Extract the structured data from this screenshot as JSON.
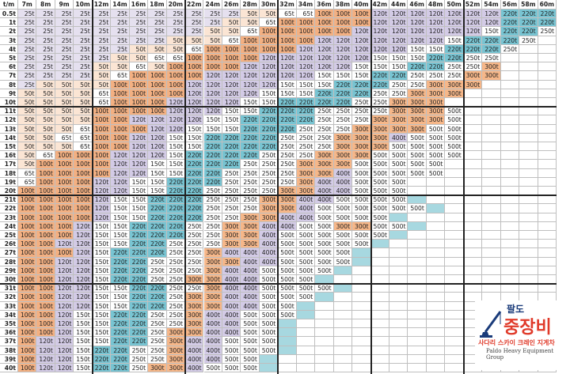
{
  "title": "",
  "lengths": [
    "7m",
    "8m",
    "9m",
    "10m",
    "12m",
    "14m",
    "16m",
    "18m",
    "20m",
    "22m",
    "24m",
    "26m",
    "28m",
    "30m",
    "32m",
    "34m",
    "36m",
    "38m",
    "40m",
    "42m",
    "44m",
    "46m",
    "48m",
    "50m",
    "52m",
    "54m",
    "56m",
    "58m",
    "60m"
  ],
  "corner_label": "t/m",
  "row_labels": [
    "0.5t",
    "1t",
    "2t",
    "3t",
    "4t",
    "5t",
    "6t",
    "7t",
    "8t",
    "9t",
    "10t",
    "11t",
    "12t",
    "13t",
    "14t",
    "15t",
    "16t",
    "17t",
    "18t",
    "19t",
    "20t",
    "21t",
    "22t",
    "23t",
    "24t",
    "25t",
    "26t",
    "27t",
    "28t",
    "29t",
    "30t",
    "31t",
    "32t",
    "33t",
    "34t",
    "35t",
    "36t",
    "37t",
    "38t",
    "39t",
    "40t"
  ],
  "rows": [
    [
      "25t",
      "25t",
      "25t",
      "25t",
      "25t",
      "25t",
      "25t",
      "25t",
      "25t",
      "25t",
      "25t",
      "25t",
      "50t",
      "50t",
      "65t",
      "65t",
      "100t",
      "100t",
      "100t",
      "120t",
      "120t",
      "120t",
      "120t",
      "120t",
      "120t",
      "120t",
      "220t",
      "220t",
      "220t"
    ],
    [
      "25t",
      "25t",
      "25t",
      "25t",
      "25t",
      "25t",
      "25t",
      "25t",
      "25t",
      "25t",
      "25t",
      "50t",
      "50t",
      "65t",
      "100t",
      "100t",
      "100t",
      "100t",
      "100t",
      "120t",
      "120t",
      "120t",
      "120t",
      "120t",
      "120t",
      "120t",
      "220t",
      "220t",
      "220t"
    ],
    [
      "25t",
      "25t",
      "25t",
      "25t",
      "25t",
      "25t",
      "25t",
      "25t",
      "25t",
      "25t",
      "50t",
      "50t",
      "65t",
      "100t",
      "100t",
      "100t",
      "100t",
      "100t",
      "120t",
      "120t",
      "120t",
      "120t",
      "120t",
      "120t",
      "120t",
      "150t",
      "220t",
      "220t",
      "250t"
    ],
    [
      "25t",
      "25t",
      "25t",
      "25t",
      "25t",
      "25t",
      "25t",
      "25t",
      "50t",
      "50t",
      "50t",
      "65t",
      "100t",
      "100t",
      "100t",
      "100t",
      "120t",
      "120t",
      "120t",
      "120t",
      "120t",
      "120t",
      "120t",
      "150t",
      "220t",
      "220t",
      "220t",
      "250t",
      ""
    ],
    [
      "25t",
      "25t",
      "25t",
      "25t",
      "25t",
      "25t",
      "50t",
      "50t",
      "50t",
      "65t",
      "100t",
      "100t",
      "100t",
      "100t",
      "100t",
      "120t",
      "120t",
      "120t",
      "120t",
      "120t",
      "120t",
      "150t",
      "150t",
      "220t",
      "220t",
      "220t",
      "250t",
      "",
      ""
    ],
    [
      "25t",
      "25t",
      "25t",
      "25t",
      "25t",
      "50t",
      "50t",
      "65t",
      "65t",
      "100t",
      "100t",
      "100t",
      "100t",
      "120t",
      "120t",
      "120t",
      "120t",
      "120t",
      "120t",
      "150t",
      "150t",
      "150t",
      "220t",
      "220t",
      "250t",
      "250t",
      "",
      "",
      ""
    ],
    [
      "25t",
      "25t",
      "25t",
      "25t",
      "50t",
      "50t",
      "65t",
      "50t",
      "100t",
      "100t",
      "100t",
      "100t",
      "120t",
      "120t",
      "120t",
      "120t",
      "120t",
      "120t",
      "150t",
      "150t",
      "150t",
      "220t",
      "220t",
      "250t",
      "250t",
      "300t",
      "",
      "",
      ""
    ],
    [
      "25t",
      "25t",
      "25t",
      "25t",
      "50t",
      "65t",
      "100t",
      "100t",
      "100t",
      "100t",
      "120t",
      "120t",
      "120t",
      "120t",
      "120t",
      "120t",
      "150t",
      "150t",
      "150t",
      "220t",
      "220t",
      "250t",
      "250t",
      "250t",
      "300t",
      "300t",
      "",
      "",
      ""
    ],
    [
      "25t",
      "50t",
      "50t",
      "50t",
      "50t",
      "100t",
      "100t",
      "100t",
      "100t",
      "120t",
      "120t",
      "120t",
      "120t",
      "120t",
      "150t",
      "150t",
      "150t",
      "220t",
      "220t",
      "220t",
      "250t",
      "250t",
      "300t",
      "300t",
      "300t",
      "",
      "",
      "",
      ""
    ],
    [
      "50t",
      "50t",
      "50t",
      "50t",
      "65t",
      "100t",
      "100t",
      "100t",
      "100t",
      "120t",
      "120t",
      "120t",
      "120t",
      "150t",
      "150t",
      "150t",
      "220t",
      "220t",
      "220t",
      "250t",
      "250t",
      "300t",
      "300t",
      "300t",
      "",
      "",
      "",
      "",
      ""
    ],
    [
      "50t",
      "50t",
      "50t",
      "50t",
      "65t",
      "100t",
      "100t",
      "100t",
      "120t",
      "120t",
      "120t",
      "120t",
      "150t",
      "150t",
      "220t",
      "220t",
      "220t",
      "220t",
      "250t",
      "250t",
      "300t",
      "300t",
      "300t",
      "",
      "",
      "",
      "",
      "",
      ""
    ],
    [
      "50t",
      "50t",
      "50t",
      "50t",
      "100t",
      "100t",
      "100t",
      "100t",
      "120t",
      "120t",
      "120t",
      "150t",
      "150t",
      "220t",
      "220t",
      "220t",
      "250t",
      "250t",
      "250t",
      "250t",
      "300t",
      "300t",
      "300t",
      "500t",
      "",
      "",
      "",
      "",
      ""
    ],
    [
      "50t",
      "50t",
      "50t",
      "50t",
      "100t",
      "100t",
      "120t",
      "120t",
      "120t",
      "120t",
      "150t",
      "150t",
      "220t",
      "220t",
      "220t",
      "220t",
      "250t",
      "250t",
      "250t",
      "300t",
      "300t",
      "300t",
      "300t",
      "500t",
      "",
      "",
      "",
      "",
      ""
    ],
    [
      "50t",
      "50t",
      "50t",
      "65t",
      "100t",
      "100t",
      "100t",
      "120t",
      "120t",
      "150t",
      "150t",
      "150t",
      "220t",
      "220t",
      "220t",
      "250t",
      "250t",
      "250t",
      "300t",
      "300t",
      "300t",
      "300t",
      "500t",
      "500t",
      "",
      "",
      "",
      "",
      ""
    ],
    [
      "50t",
      "50t",
      "65t",
      "65t",
      "100t",
      "100t",
      "120t",
      "120t",
      "150t",
      "150t",
      "220t",
      "220t",
      "220t",
      "220t",
      "250t",
      "250t",
      "250t",
      "300t",
      "300t",
      "300t",
      "400t",
      "500t",
      "500t",
      "500t",
      "",
      "",
      "",
      "",
      ""
    ],
    [
      "50t",
      "50t",
      "50t",
      "65t",
      "100t",
      "100t",
      "120t",
      "120t",
      "150t",
      "150t",
      "220t",
      "220t",
      "220t",
      "220t",
      "250t",
      "250t",
      "250t",
      "300t",
      "300t",
      "300t",
      "500t",
      "500t",
      "500t",
      "500t",
      "",
      "",
      "",
      "",
      ""
    ],
    [
      "50t",
      "65t",
      "100t",
      "100t",
      "100t",
      "120t",
      "120t",
      "120t",
      "150t",
      "220t",
      "220t",
      "220t",
      "220t",
      "250t",
      "250t",
      "250t",
      "300t",
      "300t",
      "300t",
      "500t",
      "500t",
      "500t",
      "500t",
      "500t",
      "",
      "",
      "",
      "",
      ""
    ],
    [
      "50t",
      "100t",
      "100t",
      "100t",
      "100t",
      "120t",
      "120t",
      "150t",
      "150t",
      "220t",
      "220t",
      "220t",
      "250t",
      "250t",
      "250t",
      "300t",
      "300t",
      "300t",
      "500t",
      "500t",
      "500t",
      "500t",
      "500t",
      "",
      "",
      "",
      "",
      "",
      ""
    ],
    [
      "65t",
      "100t",
      "100t",
      "100t",
      "100t",
      "120t",
      "120t",
      "150t",
      "150t",
      "220t",
      "220t",
      "250t",
      "250t",
      "250t",
      "250t",
      "300t",
      "300t",
      "400t",
      "500t",
      "500t",
      "500t",
      "500t",
      "500t",
      "",
      "",
      "",
      "",
      "",
      ""
    ],
    [
      "65t",
      "100t",
      "100t",
      "100t",
      "120t",
      "120t",
      "150t",
      "150t",
      "220t",
      "220t",
      "220t",
      "250t",
      "250t",
      "250t",
      "250t",
      "300t",
      "400t",
      "400t",
      "500t",
      "500t",
      "500t",
      "",
      "",
      "",
      "",
      "",
      "",
      "",
      ""
    ],
    [
      "100t",
      "100t",
      "100t",
      "100t",
      "120t",
      "120t",
      "150t",
      "150t",
      "220t",
      "220t",
      "250t",
      "250t",
      "250t",
      "250t",
      "300t",
      "300t",
      "400t",
      "400t",
      "500t",
      "500t",
      "500t",
      "",
      "",
      "",
      "",
      "",
      "",
      "",
      ""
    ],
    [
      "100t",
      "100t",
      "100t",
      "100t",
      "120t",
      "150t",
      "150t",
      "220t",
      "220t",
      "220t",
      "250t",
      "250t",
      "250t",
      "300t",
      "300t",
      "400t",
      "400t",
      "500t",
      "500t",
      "500t",
      "500t",
      "",
      "",
      "",
      "",
      "",
      "",
      "",
      ""
    ],
    [
      "100t",
      "100t",
      "100t",
      "100t",
      "120t",
      "150t",
      "150t",
      "220t",
      "220t",
      "220t",
      "250t",
      "250t",
      "250t",
      "300t",
      "300t",
      "400t",
      "500t",
      "500t",
      "500t",
      "500t",
      "500t",
      "500t",
      "",
      "",
      "",
      "",
      "",
      "",
      ""
    ],
    [
      "100t",
      "100t",
      "100t",
      "100t",
      "120t",
      "150t",
      "150t",
      "220t",
      "220t",
      "220t",
      "250t",
      "250t",
      "300t",
      "300t",
      "400t",
      "400t",
      "500t",
      "500t",
      "500t",
      "500t",
      "",
      "",
      "",
      "",
      "",
      "",
      "",
      "",
      ""
    ],
    [
      "100t",
      "100t",
      "100t",
      "120t",
      "150t",
      "150t",
      "220t",
      "220t",
      "220t",
      "250t",
      "250t",
      "300t",
      "300t",
      "400t",
      "400t",
      "500t",
      "500t",
      "300t",
      "300t",
      "500t",
      "500t",
      "",
      "",
      "",
      "",
      "",
      "",
      "",
      ""
    ],
    [
      "100t",
      "100t",
      "100t",
      "120t",
      "150t",
      "150t",
      "220t",
      "220t",
      "220t",
      "250t",
      "250t",
      "300t",
      "300t",
      "400t",
      "500t",
      "500t",
      "500t",
      "500t",
      "500t",
      "500t",
      "",
      "",
      "",
      "",
      "",
      "",
      "",
      "",
      ""
    ],
    [
      "100t",
      "100t",
      "120t",
      "120t",
      "150t",
      "150t",
      "220t",
      "220t",
      "250t",
      "250t",
      "250t",
      "300t",
      "300t",
      "400t",
      "500t",
      "500t",
      "500t",
      "500t",
      "500t",
      "",
      "",
      "",
      "",
      "",
      "",
      "",
      "",
      "",
      ""
    ],
    [
      "100t",
      "100t",
      "100t",
      "120t",
      "150t",
      "220t",
      "220t",
      "220t",
      "250t",
      "250t",
      "300t",
      "400t",
      "400t",
      "400t",
      "500t",
      "500t",
      "500t",
      "500t",
      "",
      "",
      "",
      "",
      "",
      "",
      "",
      "",
      "",
      "",
      ""
    ],
    [
      "100t",
      "100t",
      "120t",
      "120t",
      "150t",
      "220t",
      "220t",
      "250t",
      "250t",
      "250t",
      "300t",
      "300t",
      "400t",
      "400t",
      "500t",
      "500t",
      "500t",
      "500t",
      "",
      "",
      "",
      "",
      "",
      "",
      "",
      "",
      "",
      "",
      ""
    ],
    [
      "100t",
      "100t",
      "120t",
      "120t",
      "150t",
      "220t",
      "220t",
      "250t",
      "250t",
      "250t",
      "300t",
      "400t",
      "400t",
      "500t",
      "500t",
      "500t",
      "500t",
      "",
      "",
      "",
      "",
      "",
      "",
      "",
      "",
      "",
      "",
      "",
      ""
    ],
    [
      "100t",
      "100t",
      "120t",
      "120t",
      "150t",
      "220t",
      "220t",
      "250t",
      "250t",
      "300t",
      "300t",
      "400t",
      "400t",
      "500t",
      "500t",
      "500t",
      "",
      "",
      "",
      "",
      "",
      "",
      "",
      "",
      "",
      "",
      "",
      "",
      ""
    ],
    [
      "100t",
      "100t",
      "120t",
      "120t",
      "150t",
      "150t",
      "220t",
      "220t",
      "250t",
      "250t",
      "300t",
      "400t",
      "400t",
      "500t",
      "500t",
      "500t",
      "500t",
      "",
      "",
      "",
      "",
      "",
      "",
      "",
      "",
      "",
      "",
      "",
      ""
    ],
    [
      "100t",
      "100t",
      "120t",
      "120t",
      "150t",
      "150t",
      "220t",
      "220t",
      "250t",
      "300t",
      "300t",
      "400t",
      "400t",
      "500t",
      "500t",
      "500t",
      "",
      "",
      "",
      "",
      "",
      "",
      "",
      "",
      "",
      "",
      "",
      "",
      ""
    ],
    [
      "100t",
      "100t",
      "120t",
      "120t",
      "150t",
      "150t",
      "220t",
      "220t",
      "250t",
      "300t",
      "300t",
      "400t",
      "400t",
      "500t",
      "500t",
      "",
      "",
      "",
      "",
      "",
      "",
      "",
      "",
      "",
      "",
      "",
      "",
      "",
      ""
    ],
    [
      "100t",
      "100t",
      "120t",
      "150t",
      "150t",
      "220t",
      "220t",
      "250t",
      "250t",
      "300t",
      "400t",
      "400t",
      "500t",
      "500t",
      "500t",
      "",
      "",
      "",
      "",
      "",
      "",
      "",
      "",
      "",
      "",
      "",
      "",
      "",
      ""
    ],
    [
      "100t",
      "100t",
      "120t",
      "150t",
      "150t",
      "220t",
      "220t",
      "250t",
      "250t",
      "300t",
      "400t",
      "400t",
      "500t",
      "500t",
      "",
      "",
      "",
      "",
      "",
      "",
      "",
      "",
      "",
      "",
      "",
      "",
      "",
      "",
      ""
    ],
    [
      "100t",
      "100t",
      "120t",
      "150t",
      "150t",
      "220t",
      "220t",
      "250t",
      "300t",
      "300t",
      "400t",
      "400t",
      "500t",
      "500t",
      "",
      "",
      "",
      "",
      "",
      "",
      "",
      "",
      "",
      "",
      "",
      "",
      "",
      "",
      ""
    ],
    [
      "100t",
      "120t",
      "120t",
      "150t",
      "150t",
      "220t",
      "220t",
      "250t",
      "300t",
      "400t",
      "400t",
      "500t",
      "500t",
      "500t",
      "",
      "",
      "",
      "",
      "",
      "",
      "",
      "",
      "",
      "",
      "",
      "",
      "",
      "",
      ""
    ],
    [
      "100t",
      "120t",
      "120t",
      "150t",
      "220t",
      "220t",
      "250t",
      "250t",
      "300t",
      "400t",
      "400t",
      "500t",
      "500t",
      "500t",
      "",
      "",
      "",
      "",
      "",
      "",
      "",
      "",
      "",
      "",
      "",
      "",
      "",
      "",
      ""
    ],
    [
      "100t",
      "120t",
      "120t",
      "150t",
      "220t",
      "220t",
      "250t",
      "250t",
      "300t",
      "400t",
      "400t",
      "500t",
      "500t",
      "",
      "",
      "",
      "",
      "",
      "",
      "",
      "",
      "",
      "",
      "",
      "",
      "",
      "",
      "",
      ""
    ],
    [
      "100t",
      "120t",
      "120t",
      "150t",
      "220t",
      "220t",
      "250t",
      "300t",
      "300t",
      "400t",
      "500t",
      "500t",
      "500t",
      "",
      "",
      "",
      "",
      "",
      "",
      "",
      "",
      "",
      "",
      "",
      "",
      "",
      "",
      "",
      ""
    ]
  ],
  "capacity_colors": {
    "25t": "#e5e0ef",
    "50t": "#fbe5d4",
    "65t": "#ffffff",
    "100t": "#f3b082",
    "120t": "#d3cbe6",
    "150t": "#ffffff",
    "220t": "#78c4d2",
    "250t": "#ffffff",
    "300t": "#f6b789",
    "400t": "#d3cbe6",
    "500t": "#ffffff"
  },
  "empty_highlight_color": "#a7d8e0",
  "logo": {
    "top_text": "팔도",
    "main_text": "중장비",
    "sub_text": "사다리 스카이 크레인 지게차",
    "eng_text": "Paldo Heavy Equipment Group"
  }
}
